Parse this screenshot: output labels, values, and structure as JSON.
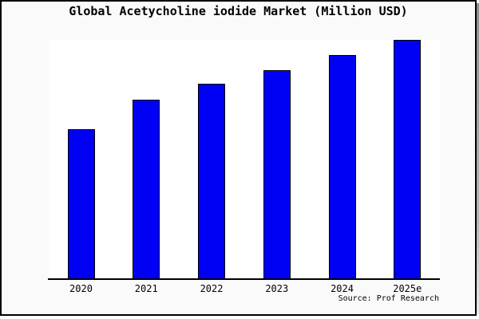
{
  "colors": {
    "canvas_background": "#fafafa",
    "plot_background": "#ffffff",
    "frame_border": "#000000",
    "text": "#000000",
    "bar_fill": "#0000f5",
    "bar_border": "#000000"
  },
  "chart_data": {
    "type": "bar",
    "title": "Global Acetycholine iodide Market (Million USD)",
    "categories": [
      "2020",
      "2021",
      "2022",
      "2023",
      "2024",
      "2025e"
    ],
    "values": [
      188,
      225,
      245,
      262,
      281,
      300
    ],
    "value_scale_note": "chart shows no numeric y-axis, gridlines or data labels; values are relative bar heights in pixels",
    "xlabel": "",
    "ylabel": "",
    "legend": false,
    "gridlines": false,
    "bar_color": "#0000f5",
    "bar_border_color": "#000000",
    "source": "Source: Prof Research"
  }
}
